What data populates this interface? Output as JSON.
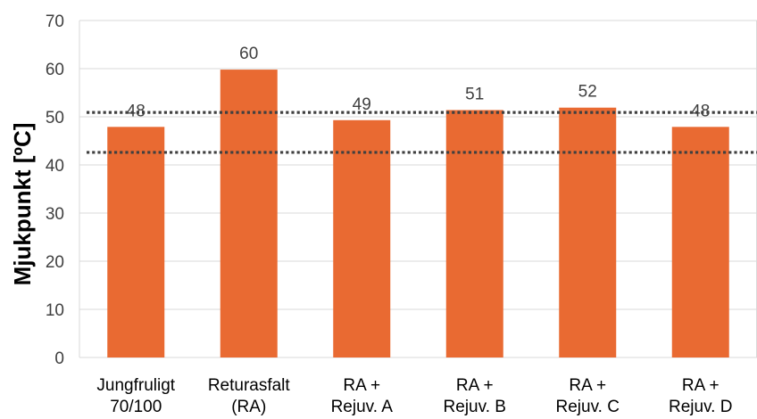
{
  "chart_data": {
    "type": "bar",
    "ylabel": "Mjukpunkt [ºC]",
    "xlabel": "",
    "ylim": [
      0,
      70
    ],
    "yticks": [
      0,
      10,
      20,
      30,
      40,
      50,
      60,
      70
    ],
    "grid": true,
    "categories": [
      [
        "Jungfruligt",
        "70/100"
      ],
      [
        "Returasfalt",
        "(RA)"
      ],
      [
        "RA +",
        "Rejuv. A"
      ],
      [
        "RA +",
        "Rejuv. B"
      ],
      [
        "RA +",
        "Rejuv. C"
      ],
      [
        "RA +",
        "Rejuv. D"
      ]
    ],
    "values": [
      48,
      60,
      49,
      51,
      52,
      48
    ],
    "value_values": [
      47.9,
      59.8,
      49.3,
      51.4,
      51.9,
      47.9
    ],
    "reference_lines": [
      50.9,
      42.6
    ],
    "colors": {
      "bar": "#E96A32",
      "grid": "#D9D9D9",
      "reference": "#404040"
    }
  }
}
